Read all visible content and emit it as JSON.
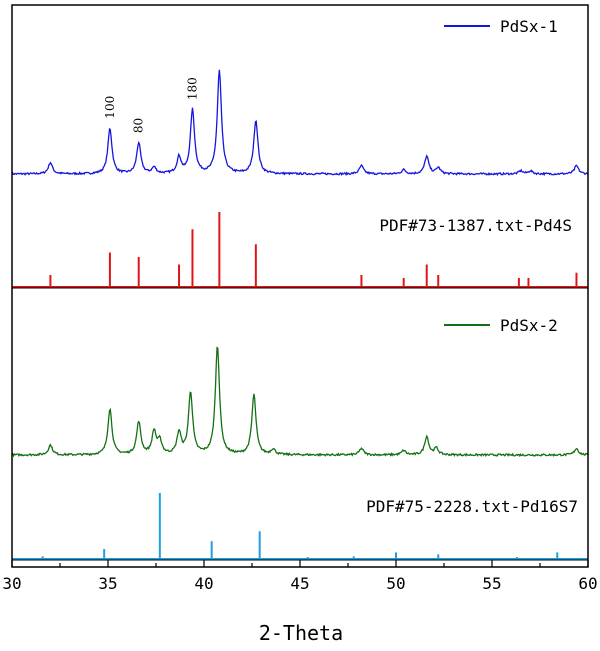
{
  "chart_data": {
    "type": "line",
    "xlabel": "2-Theta",
    "xlim": [
      30,
      60
    ],
    "xticks": [
      30,
      35,
      40,
      45,
      50,
      55,
      60
    ],
    "grid": false,
    "panels": [
      {
        "kind": "pattern",
        "name": "PdSx-1",
        "color": "#1515e0",
        "legend": "top-right",
        "peaks": [
          [
            32.0,
            0.11
          ],
          [
            35.1,
            0.44
          ],
          [
            36.6,
            0.3
          ],
          [
            37.4,
            0.06
          ],
          [
            38.7,
            0.16
          ],
          [
            39.4,
            0.62
          ],
          [
            40.8,
            1.0
          ],
          [
            42.7,
            0.52
          ],
          [
            48.2,
            0.08
          ],
          [
            50.4,
            0.04
          ],
          [
            51.6,
            0.17
          ],
          [
            52.2,
            0.06
          ],
          [
            56.5,
            0.03
          ],
          [
            57.0,
            0.03
          ],
          [
            59.4,
            0.08
          ]
        ],
        "annotations": [
          {
            "text": "100",
            "x": 35.1
          },
          {
            "text": "80",
            "x": 36.6
          },
          {
            "text": "180",
            "x": 39.4
          }
        ]
      },
      {
        "kind": "reference",
        "name": "PDF#73-1387.txt-Pd4S",
        "color": "#e01515",
        "lines": [
          [
            32.0,
            0.16
          ],
          [
            35.1,
            0.46
          ],
          [
            36.6,
            0.4
          ],
          [
            38.7,
            0.3
          ],
          [
            39.4,
            0.77
          ],
          [
            40.8,
            1.0
          ],
          [
            42.7,
            0.57
          ],
          [
            48.2,
            0.16
          ],
          [
            50.4,
            0.12
          ],
          [
            51.6,
            0.3
          ],
          [
            52.2,
            0.16
          ],
          [
            56.4,
            0.12
          ],
          [
            56.9,
            0.12
          ],
          [
            59.4,
            0.19
          ]
        ]
      },
      {
        "kind": "pattern",
        "name": "PdSx-2",
        "color": "#157015",
        "legend": "top-right",
        "peaks": [
          [
            32.0,
            0.09
          ],
          [
            35.1,
            0.42
          ],
          [
            36.6,
            0.3
          ],
          [
            37.4,
            0.21
          ],
          [
            37.7,
            0.12
          ],
          [
            38.7,
            0.2
          ],
          [
            39.3,
            0.57
          ],
          [
            40.7,
            1.0
          ],
          [
            42.6,
            0.55
          ],
          [
            43.6,
            0.05
          ],
          [
            48.2,
            0.06
          ],
          [
            50.4,
            0.04
          ],
          [
            51.6,
            0.17
          ],
          [
            52.1,
            0.06
          ],
          [
            59.4,
            0.06
          ]
        ]
      },
      {
        "kind": "reference",
        "name": "PDF#75-2228.txt-Pd16S7",
        "color": "#1ea0e0",
        "lines": [
          [
            31.6,
            0.04
          ],
          [
            34.8,
            0.15
          ],
          [
            37.7,
            1.0
          ],
          [
            40.4,
            0.27
          ],
          [
            42.9,
            0.42
          ],
          [
            45.4,
            0.03
          ],
          [
            47.8,
            0.04
          ],
          [
            50.0,
            0.1
          ],
          [
            52.2,
            0.07
          ],
          [
            56.3,
            0.03
          ],
          [
            58.4,
            0.1
          ]
        ]
      }
    ]
  }
}
